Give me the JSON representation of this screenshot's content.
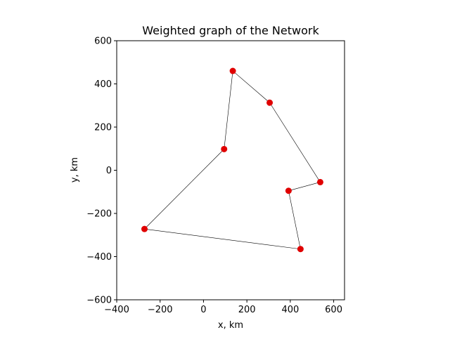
{
  "chart_data": {
    "type": "scatter",
    "title": "Weighted graph of the Network",
    "xlabel": "x, km",
    "ylabel": "y, km",
    "xlim": [
      -400,
      650
    ],
    "ylim": [
      -600,
      600
    ],
    "xticks": [
      -400,
      -200,
      0,
      200,
      400,
      600
    ],
    "yticks": [
      -600,
      -400,
      -200,
      0,
      200,
      400,
      600
    ],
    "xtick_labels": [
      "−400",
      "−200",
      "0",
      "200",
      "400",
      "600"
    ],
    "ytick_labels": [
      "−600",
      "−400",
      "−200",
      "0",
      "200",
      "400",
      "600"
    ],
    "grid": false,
    "marker_color": "#e00000",
    "edge_color": "#000000",
    "points": [
      {
        "x": 135,
        "y": 460
      },
      {
        "x": 305,
        "y": 313
      },
      {
        "x": 538,
        "y": -55
      },
      {
        "x": 392,
        "y": -95
      },
      {
        "x": 447,
        "y": -365
      },
      {
        "x": -272,
        "y": -272
      },
      {
        "x": 95,
        "y": 98
      }
    ],
    "edges": [
      [
        0,
        1
      ],
      [
        1,
        2
      ],
      [
        2,
        3
      ],
      [
        3,
        4
      ],
      [
        4,
        5
      ],
      [
        5,
        6
      ],
      [
        6,
        0
      ]
    ]
  }
}
